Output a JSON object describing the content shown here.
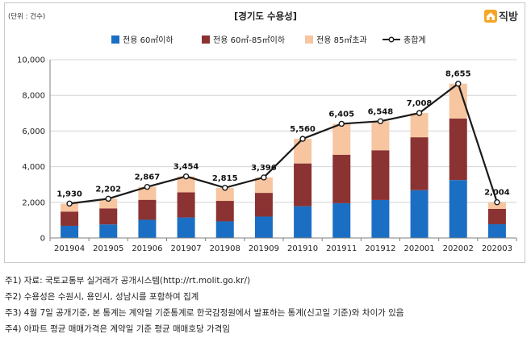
{
  "header": {
    "unit": "(단위 : 건수)",
    "title": "[경기도 수용성]",
    "brand": "직방",
    "brand_color": "#f5a623"
  },
  "chart_data": {
    "type": "bar",
    "stacked": true,
    "categories": [
      "201904",
      "201905",
      "201906",
      "201907",
      "201908",
      "201909",
      "201910",
      "201911",
      "201912",
      "202001",
      "202002",
      "202003"
    ],
    "series": [
      {
        "name": "전용 60㎡이하",
        "color": "#1a6fc4",
        "values": [
          680,
          760,
          1020,
          1150,
          930,
          1200,
          1780,
          1950,
          2130,
          2680,
          3250,
          770
        ]
      },
      {
        "name": "전용 60㎡-85㎡이하",
        "color": "#8b3232",
        "values": [
          800,
          900,
          1120,
          1410,
          1150,
          1330,
          2400,
          2720,
          2790,
          2970,
          3450,
          860
        ]
      },
      {
        "name": "전용 85㎡초과",
        "color": "#f7c59f",
        "values": [
          450,
          542,
          727,
          894,
          735,
          866,
          1380,
          1735,
          1628,
          1358,
          1955,
          374
        ]
      }
    ],
    "total": {
      "name": "총합계",
      "color": "#1a1a1a",
      "values": [
        1930,
        2202,
        2867,
        3454,
        2815,
        3396,
        5560,
        6405,
        6548,
        7008,
        8655,
        2004
      ],
      "labels": [
        "1,930",
        "2,202",
        "2,867",
        "3,454",
        "2,815",
        "3,396",
        "5,560",
        "6,405",
        "6,548",
        "7,008",
        "8,655",
        "2,004"
      ]
    },
    "ylim": [
      0,
      10000
    ],
    "yticks": [
      0,
      2000,
      4000,
      6000,
      8000,
      10000
    ],
    "ytick_labels": [
      "0",
      "2,000",
      "4,000",
      "6,000",
      "8,000",
      "10,000"
    ],
    "grid": true,
    "legend_position": "top"
  },
  "notes": [
    "주1) 자료: 국토교통부 실거래가 공개시스템(http://rt.molit.go.kr/)",
    "주2) 수용성은 수원시, 용인시, 성남시를 포함하여 집계",
    "주3) 4월 7일 공개기준, 본 통계는 계약일 기준통계로 한국감정원에서 발표하는 통계(신고일 기준)와 차이가 있음",
    "주4) 아파트 평균 매매가격은 계약일 기준 평균 매매호당 가격임"
  ]
}
